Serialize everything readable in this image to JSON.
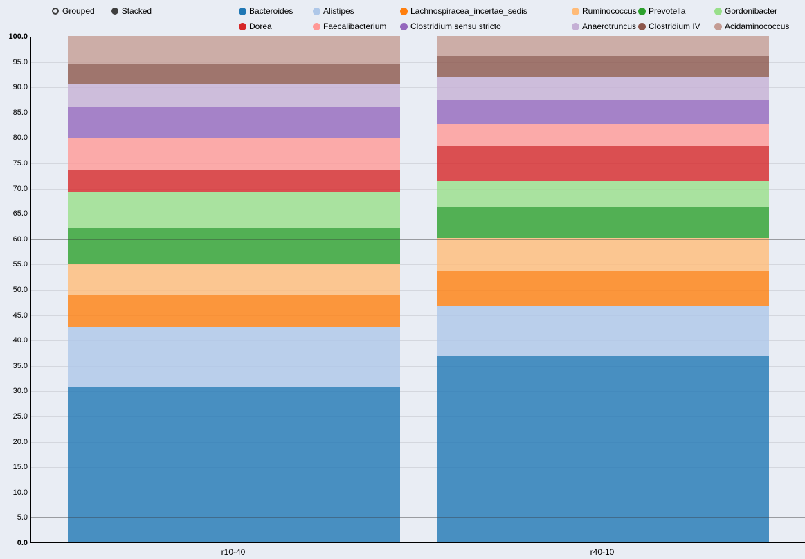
{
  "controls": [
    {
      "label": "Grouped",
      "selected": false
    },
    {
      "label": "Stacked",
      "selected": true
    }
  ],
  "chart_data": {
    "type": "bar",
    "stacked": true,
    "title": "",
    "xlabel": "",
    "ylabel": "",
    "grid": true,
    "legend_position": "top",
    "categories": [
      "r10-40",
      "r40-10"
    ],
    "series": [
      {
        "name": "Bacteroides",
        "color": "#1f77b4",
        "values": [
          30.7,
          36.9
        ]
      },
      {
        "name": "Alistipes",
        "color": "#aec7e8",
        "values": [
          11.8,
          9.7
        ]
      },
      {
        "name": "Lachnospiracea_incertae_sedis",
        "color": "#ff7f0e",
        "values": [
          6.3,
          7.1
        ]
      },
      {
        "name": "Ruminococcus",
        "color": "#ffbb78",
        "values": [
          6.1,
          6.4
        ]
      },
      {
        "name": "Prevotella",
        "color": "#2ca02c",
        "values": [
          7.3,
          6.2
        ]
      },
      {
        "name": "Gordonibacter",
        "color": "#98df8a",
        "values": [
          7.1,
          5.1
        ]
      },
      {
        "name": "Dorea",
        "color": "#d62728",
        "values": [
          4.2,
          6.9
        ]
      },
      {
        "name": "Faecalibacterium",
        "color": "#ff9896",
        "values": [
          6.4,
          4.4
        ]
      },
      {
        "name": "Clostridium sensu stricto",
        "color": "#9467bd",
        "values": [
          6.2,
          4.7
        ]
      },
      {
        "name": "Anaerotruncus",
        "color": "#c5b0d5",
        "values": [
          4.5,
          4.5
        ]
      },
      {
        "name": "Clostridium IV",
        "color": "#8c564b",
        "values": [
          3.9,
          4.1
        ]
      },
      {
        "name": "Acidaminococcus",
        "color": "#c49c94",
        "values": [
          5.5,
          4.0
        ]
      }
    ],
    "ylim": [
      0,
      100
    ],
    "ytick_step": 5,
    "ytick_labels": [
      "0.0",
      "5.0",
      "10.0",
      "15.0",
      "20.0",
      "25.0",
      "30.0",
      "35.0",
      "40.0",
      "45.0",
      "50.0",
      "55.0",
      "60.0",
      "65.0",
      "70.0",
      "75.0",
      "80.0",
      "85.0",
      "90.0",
      "95.0",
      "100.0"
    ],
    "grid_emphasis": [
      60,
      5
    ]
  }
}
